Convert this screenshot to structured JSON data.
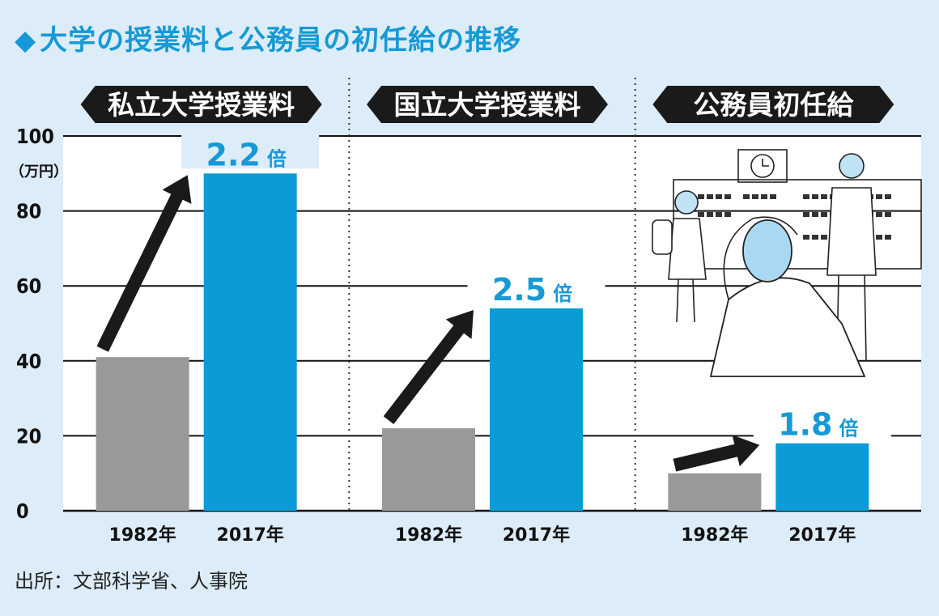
{
  "title": "大学の授業料と公務員の初任給の推移",
  "title_marker": "◆",
  "source": "出所：文部科学省、人事院",
  "colors": {
    "background": "#dcecf8",
    "plot_area": "#ffffff",
    "bar_1982": "#999999",
    "bar_2017": "#0b9bd6",
    "label_banner": "#1a1a1a",
    "arrow": "#1a1a1a",
    "accent_text": "#1699d6"
  },
  "icons": [
    "school-building-icon",
    "worried-man-icon",
    "student-girl-icon",
    "student-boy-icon",
    "clock-icon"
  ],
  "chart_data": {
    "type": "bar",
    "y_axis": {
      "min": 0,
      "max": 100,
      "ticks": [
        0,
        20,
        40,
        60,
        80,
        100
      ],
      "unit_label": "（万円）",
      "grid": true
    },
    "categories": [
      "1982年",
      "2017年"
    ],
    "panels": [
      {
        "label": "私立大学授業料",
        "values": [
          41,
          90
        ],
        "ratio": "2.2",
        "ratio_suffix": "倍"
      },
      {
        "label": "国立大学授業料",
        "values": [
          22,
          54
        ],
        "ratio": "2.5",
        "ratio_suffix": "倍"
      },
      {
        "label": "公務員初任給",
        "values": [
          10,
          18
        ],
        "ratio": "1.8",
        "ratio_suffix": "倍"
      }
    ]
  }
}
